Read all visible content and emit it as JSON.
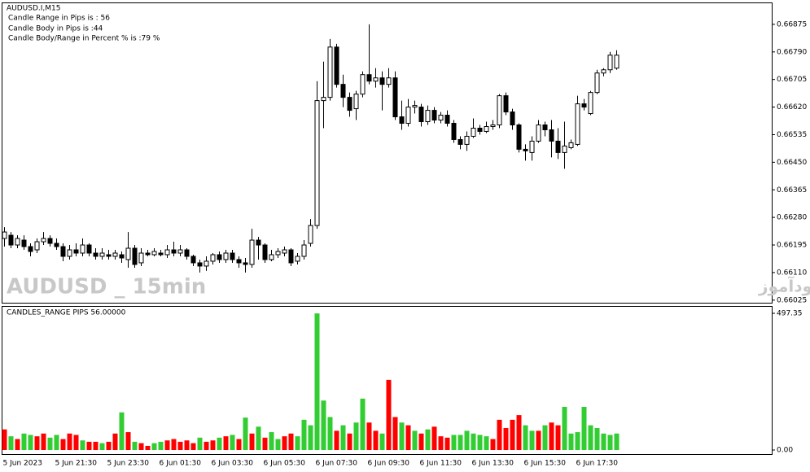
{
  "chart_data": [
    {
      "type": "candlestick",
      "title": "AUDUSD.I,M15",
      "annotations": [
        "Candle Range in Pips is : 56",
        "Candle Body in Pips is :44",
        "Candle Body/Range in Percent % is :79 %"
      ],
      "watermark": "AUDUSD _ 15min",
      "watermark_fa": "انتشار در سایت سودآموز",
      "up_color": "#ffffff",
      "down_color": "#000000",
      "categories": [
        "5 Jun 2023",
        null,
        null,
        null,
        null,
        null,
        null,
        null,
        "5 Jun 21:30",
        null,
        null,
        null,
        null,
        null,
        null,
        null,
        "5 Jun 23:30",
        null,
        null,
        null,
        null,
        null,
        null,
        null,
        "6 Jun 01:30",
        null,
        null,
        null,
        null,
        null,
        null,
        null,
        "6 Jun 03:30",
        null,
        null,
        null,
        null,
        null,
        null,
        null,
        "6 Jun 05:30",
        null,
        null,
        null,
        null,
        null,
        null,
        null,
        "6 Jun 07:30",
        null,
        null,
        null,
        null,
        null,
        null,
        null,
        "6 Jun 09:30",
        null,
        null,
        null,
        null,
        null,
        null,
        null,
        "6 Jun 11:30",
        null,
        null,
        null,
        null,
        null,
        null,
        null,
        "6 Jun 13:30",
        null,
        null,
        null,
        null,
        null,
        null,
        null,
        "6 Jun 15:30",
        null,
        null,
        null,
        null,
        null,
        null,
        null,
        "6 Jun 17:30",
        null,
        null,
        null,
        null,
        null,
        null
      ],
      "open": [
        0.66215,
        0.66225,
        0.66195,
        0.6621,
        0.6619,
        0.6618,
        0.66205,
        0.66215,
        0.662,
        0.6619,
        0.6616,
        0.6618,
        0.6617,
        0.66195,
        0.6617,
        0.6616,
        0.66165,
        0.6616,
        0.66165,
        0.6615,
        0.66185,
        0.6614,
        0.6617,
        0.66165,
        0.6617,
        0.66165,
        0.6618,
        0.6617,
        0.6618,
        0.6616,
        0.6614,
        0.6613,
        0.66145,
        0.66165,
        0.6615,
        0.6617,
        0.6615,
        0.6614,
        0.66135,
        0.6621,
        0.66195,
        0.6615,
        0.66165,
        0.6617,
        0.6618,
        0.66145,
        0.6616,
        0.662,
        0.66255,
        0.6664,
        0.6665,
        0.66805,
        0.6669,
        0.6665,
        0.66615,
        0.6666,
        0.6672,
        0.667,
        0.6671,
        0.6669,
        0.6671,
        0.6659,
        0.6657,
        0.6662,
        0.6662,
        0.66575,
        0.6661,
        0.6658,
        0.66595,
        0.6657,
        0.6652,
        0.66505,
        0.6653,
        0.66555,
        0.66545,
        0.6656,
        0.66565,
        0.66655,
        0.66605,
        0.66565,
        0.6649,
        0.6648,
        0.66515,
        0.66565,
        0.6655,
        0.66515,
        0.6648,
        0.66495,
        0.66505,
        0.6663,
        0.666,
        0.66665,
        0.66725,
        0.66735,
        0.6674
      ],
      "high": [
        0.6625,
        0.66235,
        0.66225,
        0.66225,
        0.662,
        0.66215,
        0.66235,
        0.66225,
        0.66215,
        0.662,
        0.66195,
        0.662,
        0.66215,
        0.662,
        0.66185,
        0.66185,
        0.6618,
        0.6618,
        0.66175,
        0.66235,
        0.66195,
        0.66185,
        0.6618,
        0.66185,
        0.6618,
        0.66195,
        0.66205,
        0.66195,
        0.66185,
        0.66165,
        0.6615,
        0.6616,
        0.6617,
        0.66175,
        0.6618,
        0.6618,
        0.6616,
        0.66155,
        0.66245,
        0.6622,
        0.662,
        0.6618,
        0.66185,
        0.6619,
        0.66185,
        0.6617,
        0.6621,
        0.66275,
        0.667,
        0.6676,
        0.6683,
        0.66815,
        0.6672,
        0.66665,
        0.6667,
        0.6673,
        0.66875,
        0.6674,
        0.6673,
        0.6674,
        0.6673,
        0.6664,
        0.66645,
        0.6664,
        0.6663,
        0.66625,
        0.6662,
        0.66605,
        0.6661,
        0.6658,
        0.6653,
        0.66545,
        0.66585,
        0.66565,
        0.66575,
        0.6658,
        0.6666,
        0.66665,
        0.66615,
        0.6657,
        0.66505,
        0.6653,
        0.6658,
        0.66575,
        0.6658,
        0.66555,
        0.66575,
        0.6652,
        0.66655,
        0.66645,
        0.6667,
        0.66735,
        0.6674,
        0.6679,
        0.66795
      ],
      "low": [
        0.6619,
        0.66185,
        0.66185,
        0.6618,
        0.6616,
        0.6617,
        0.66195,
        0.6619,
        0.6618,
        0.66145,
        0.6615,
        0.6616,
        0.6616,
        0.6616,
        0.6615,
        0.6615,
        0.6615,
        0.6615,
        0.6614,
        0.66125,
        0.66125,
        0.6613,
        0.6616,
        0.6616,
        0.6616,
        0.66155,
        0.6616,
        0.6616,
        0.6615,
        0.6613,
        0.6611,
        0.66115,
        0.66135,
        0.6614,
        0.6614,
        0.6614,
        0.66125,
        0.6611,
        0.66125,
        0.6615,
        0.6614,
        0.66145,
        0.66155,
        0.6616,
        0.6613,
        0.66135,
        0.6615,
        0.6619,
        0.66245,
        0.66555,
        0.6664,
        0.6668,
        0.6662,
        0.6659,
        0.6658,
        0.6665,
        0.6669,
        0.6668,
        0.6661,
        0.6668,
        0.6658,
        0.6655,
        0.6656,
        0.666,
        0.6656,
        0.66565,
        0.6657,
        0.6657,
        0.6656,
        0.6651,
        0.6649,
        0.66485,
        0.66525,
        0.66535,
        0.6654,
        0.6655,
        0.66555,
        0.66595,
        0.6655,
        0.6648,
        0.66455,
        0.66455,
        0.6651,
        0.6653,
        0.66465,
        0.6646,
        0.6643,
        0.6649,
        0.665,
        0.6661,
        0.66595,
        0.6666,
        0.66715,
        0.66725,
        0.66735
      ],
      "close": [
        0.66235,
        0.66195,
        0.66215,
        0.6619,
        0.66175,
        0.66205,
        0.66215,
        0.662,
        0.6619,
        0.6616,
        0.6618,
        0.6617,
        0.66195,
        0.6617,
        0.6616,
        0.6617,
        0.6616,
        0.6617,
        0.66155,
        0.66185,
        0.66135,
        0.6617,
        0.66165,
        0.66175,
        0.66165,
        0.6618,
        0.6617,
        0.6618,
        0.6616,
        0.6614,
        0.6613,
        0.66145,
        0.66165,
        0.6615,
        0.6617,
        0.6615,
        0.6614,
        0.66135,
        0.6621,
        0.66195,
        0.6615,
        0.66165,
        0.66175,
        0.6618,
        0.6614,
        0.6616,
        0.66195,
        0.66255,
        0.6664,
        0.6665,
        0.66805,
        0.6669,
        0.6665,
        0.6661,
        0.6666,
        0.6672,
        0.667,
        0.6671,
        0.6669,
        0.6671,
        0.6659,
        0.6657,
        0.6662,
        0.66625,
        0.66575,
        0.6661,
        0.6658,
        0.66595,
        0.6657,
        0.6652,
        0.66505,
        0.6653,
        0.66555,
        0.66545,
        0.6656,
        0.66565,
        0.66655,
        0.66605,
        0.66565,
        0.6649,
        0.66485,
        0.66515,
        0.66565,
        0.6655,
        0.66515,
        0.6648,
        0.665,
        0.6651,
        0.6663,
        0.6662,
        0.66665,
        0.66725,
        0.66735,
        0.6678,
        0.6678
      ],
      "ylim": [
        0.66017,
        0.6694
      ],
      "yticks": [
        0.66875,
        {
          "value": 0.6679,
          "label": "0.66790"
        },
        0.66705,
        {
          "value": 0.6662,
          "label": "0.66620"
        },
        0.66535,
        {
          "value": 0.6645,
          "label": "0.66450"
        },
        0.66365,
        {
          "value": 0.6628,
          "label": "0.66280"
        },
        0.66195,
        {
          "value": 0.6611,
          "label": "0.66110"
        },
        0.66025
      ]
    },
    {
      "type": "bar",
      "title": "CANDLES_RANGE PIPS 56.00000",
      "values": [
        75,
        50,
        40,
        60,
        55,
        50,
        60,
        45,
        55,
        40,
        60,
        55,
        35,
        30,
        30,
        25,
        30,
        60,
        137,
        65,
        30,
        25,
        15,
        25,
        30,
        35,
        40,
        30,
        35,
        25,
        45,
        30,
        35,
        45,
        50,
        55,
        40,
        118,
        60,
        85,
        45,
        65,
        40,
        50,
        60,
        50,
        110,
        90,
        497,
        180,
        120,
        70,
        90,
        60,
        100,
        187,
        100,
        70,
        60,
        255,
        120,
        100,
        90,
        70,
        60,
        75,
        85,
        50,
        45,
        55,
        55,
        70,
        60,
        55,
        50,
        40,
        110,
        80,
        110,
        127,
        90,
        70,
        70,
        90,
        100,
        90,
        157,
        60,
        65,
        157,
        90,
        80,
        60,
        55,
        60
      ],
      "colors": [
        "#ff0000",
        "#32cd32",
        "#ff0000",
        "#32cd32",
        "#32cd32",
        "#ff0000",
        "#ff0000",
        "#32cd32",
        "#32cd32",
        "#ff0000",
        "#ff0000",
        "#ff0000",
        "#32cd32",
        "#ff0000",
        "#ff0000",
        "#32cd32",
        "#ff0000",
        "#ff0000",
        "#32cd32",
        "#ff0000",
        "#32cd32",
        "#ff0000",
        "#ff0000",
        "#32cd32",
        "#32cd32",
        "#ff0000",
        "#ff0000",
        "#ff0000",
        "#ff0000",
        "#ff0000",
        "#32cd32",
        "#ff0000",
        "#ff0000",
        "#32cd32",
        "#ff0000",
        "#32cd32",
        "#ff0000",
        "#32cd32",
        "#ff0000",
        "#32cd32",
        "#ff0000",
        "#32cd32",
        "#32cd32",
        "#ff0000",
        "#ff0000",
        "#32cd32",
        "#32cd32",
        "#32cd32",
        "#32cd32",
        "#32cd32",
        "#32cd32",
        "#ff0000",
        "#32cd32",
        "#ff0000",
        "#32cd32",
        "#32cd32",
        "#ff0000",
        "#ff0000",
        "#32cd32",
        "#ff0000",
        "#ff0000",
        "#32cd32",
        "#ff0000",
        "#32cd32",
        "#ff0000",
        "#32cd32",
        "#ff0000",
        "#ff0000",
        "#ff0000",
        "#32cd32",
        "#32cd32",
        "#32cd32",
        "#32cd32",
        "#32cd32",
        "#32cd32",
        "#ff0000",
        "#ff0000",
        "#ff0000",
        "#ff0000",
        "#ff0000",
        "#32cd32",
        "#32cd32",
        "#ff0000",
        "#32cd32",
        "#ff0000",
        "#ff0000",
        "#32cd32",
        "#32cd32",
        "#32cd32",
        "#32cd32",
        "#32cd32",
        "#32cd32",
        "#32cd32",
        "#32cd32",
        "#32cd32"
      ],
      "ylim": [
        0,
        497.35
      ],
      "yticks": [
        497.35,
        {
          "value": 0,
          "label": "0.00"
        }
      ]
    }
  ]
}
